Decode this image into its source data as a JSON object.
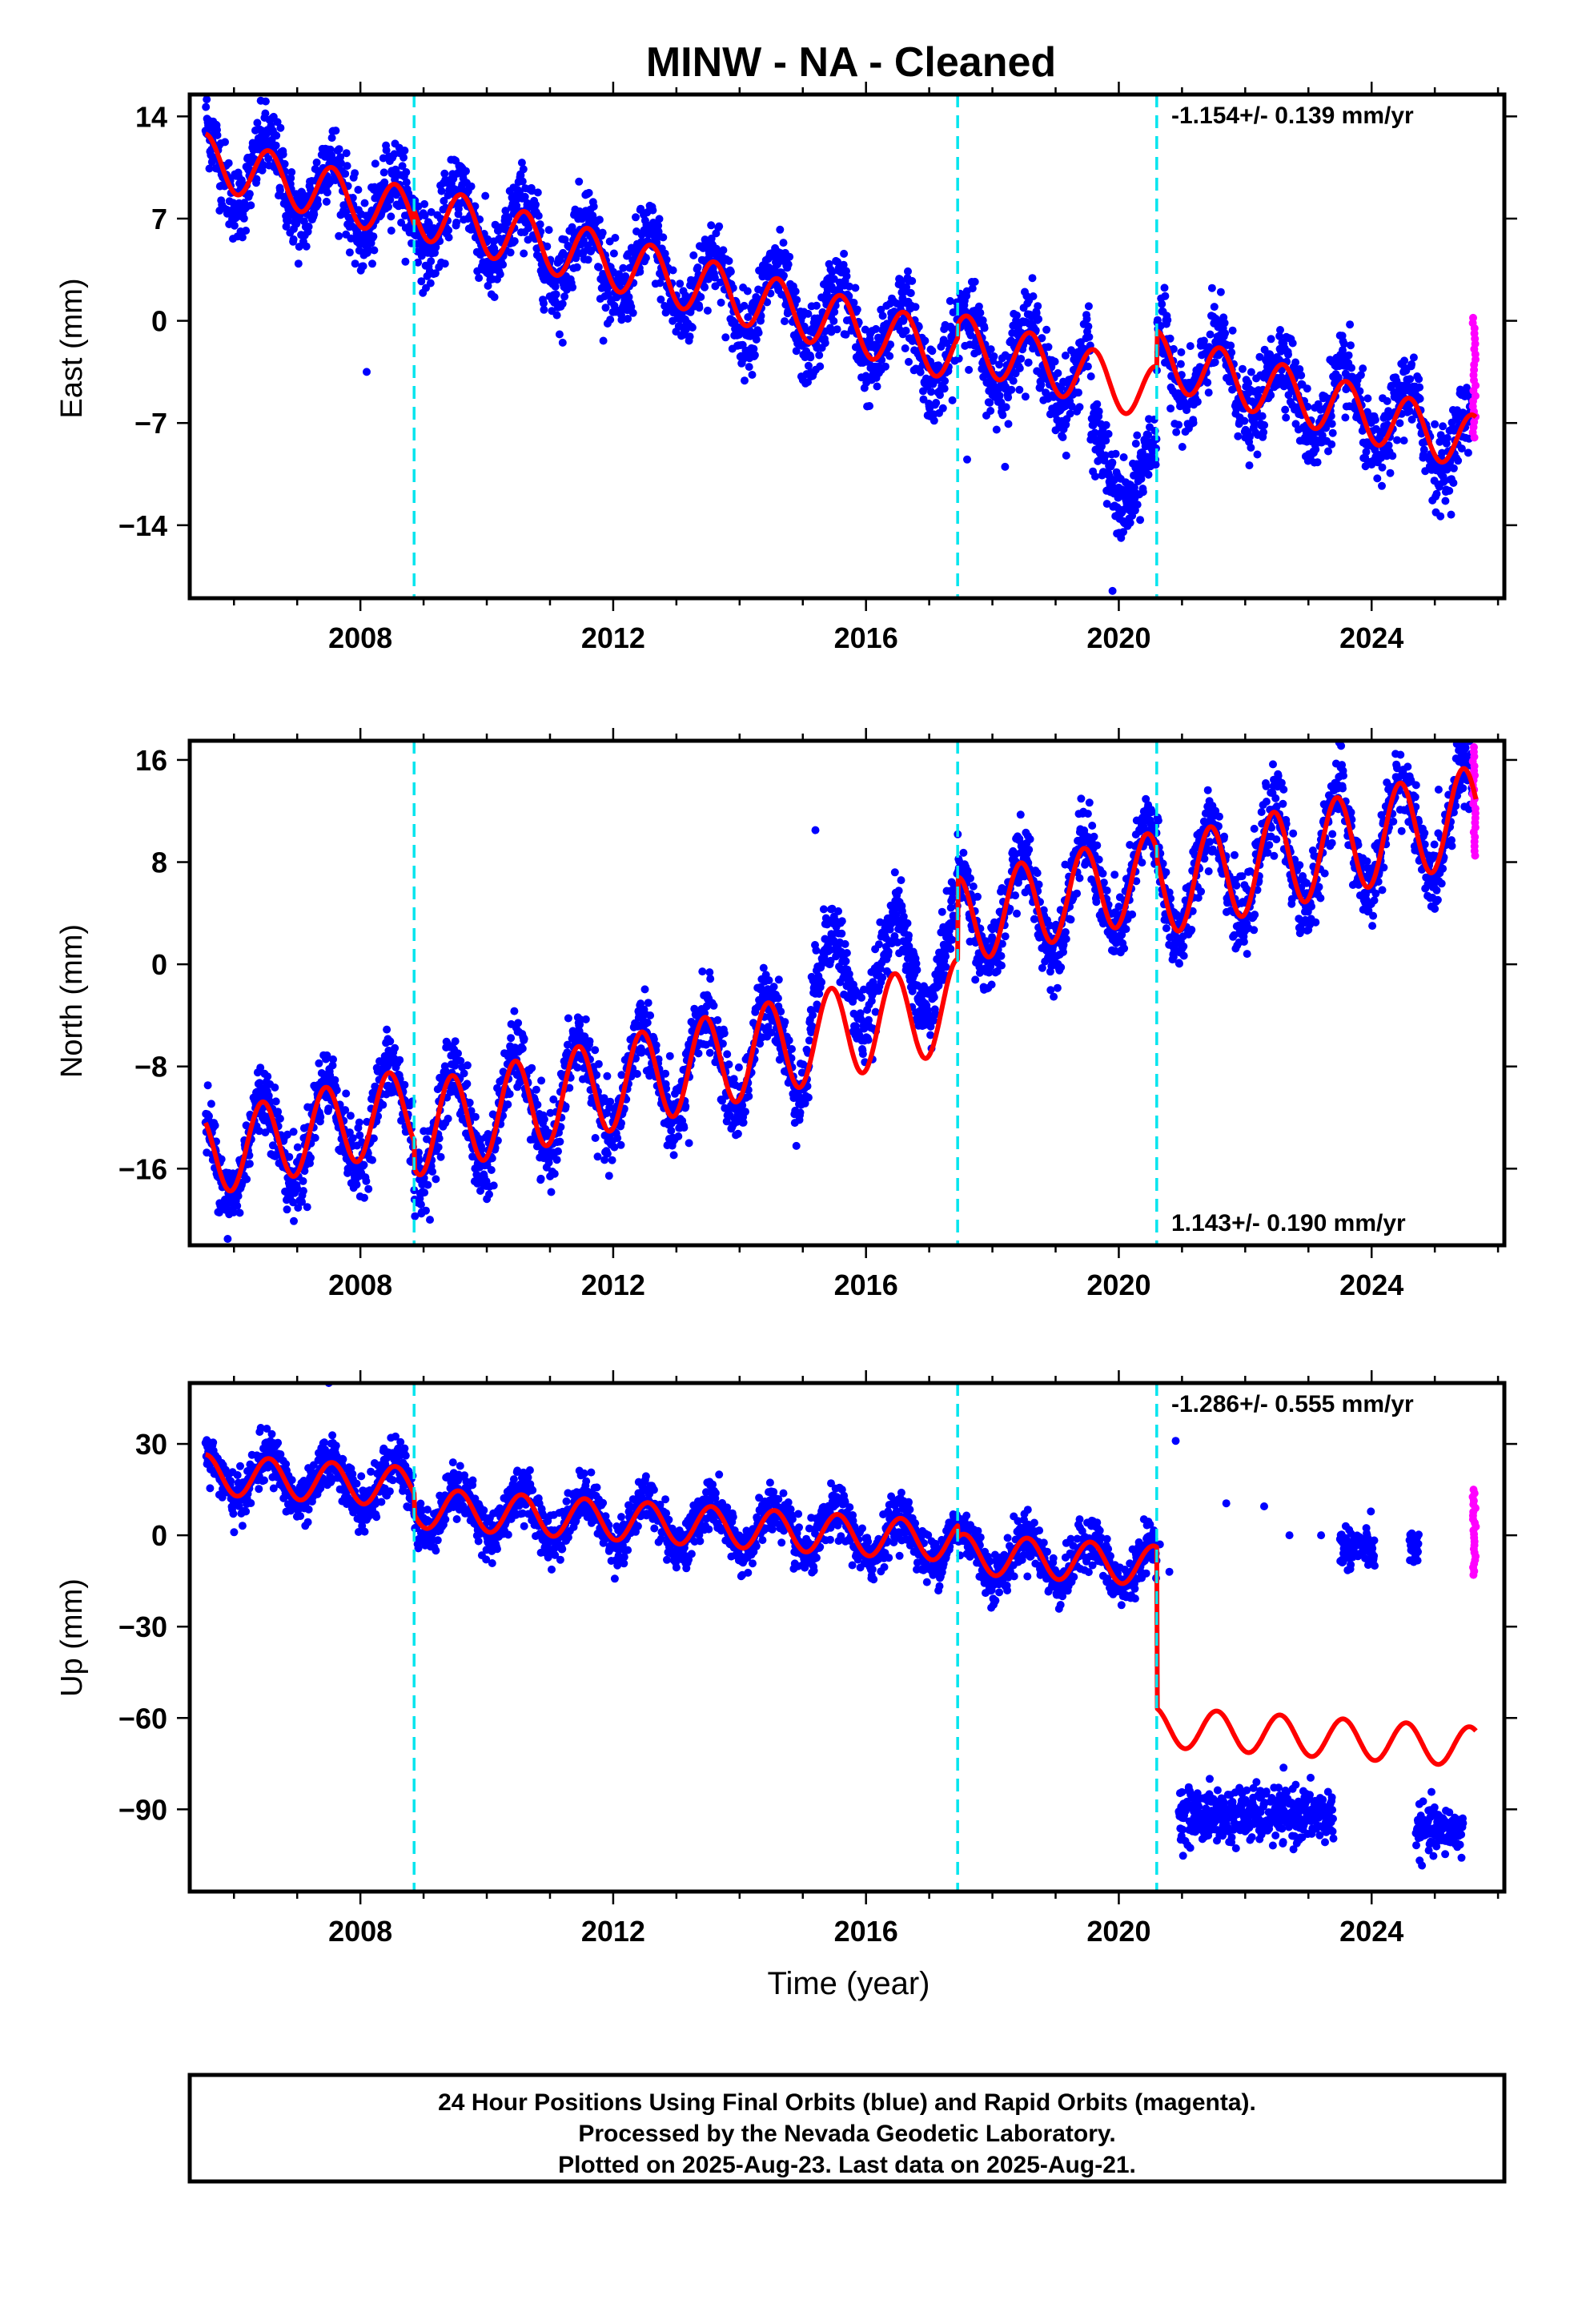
{
  "title": "MINW  - NA - Cleaned",
  "x_axis_label": "Time (year)",
  "footer": {
    "lines": [
      "24 Hour Positions Using Final Orbits (blue) and Rapid Orbits (magenta).",
      "Processed by the Nevada Geodetic Laboratory.",
      "Plotted on 2025-Aug-23. Last data on 2025-Aug-21."
    ]
  },
  "colors": {
    "final_orbits": "#0000ff",
    "rapid_orbits": "#ff00ff",
    "model_fit": "#ff0000",
    "event_lines": "#00e5ee",
    "frame": "#000000"
  },
  "chart_data": [
    {
      "type": "scatter",
      "panel": "east",
      "ylabel": "East (mm)",
      "rate_label": "-1.154+/- 0.139 mm/yr",
      "rate_label_position": "top-right",
      "xlim": [
        2005.3,
        2026.1
      ],
      "ylim": [
        -19,
        15.5
      ],
      "x_ticks": [
        2008,
        2012,
        2016,
        2020,
        2024
      ],
      "y_ticks": [
        14,
        7,
        0,
        -7,
        -14
      ],
      "y_tick_labels": [
        "14",
        "7",
        "0",
        "−7",
        "−14"
      ],
      "event_lines_x": [
        2008.85,
        2017.45,
        2020.6
      ],
      "model": {
        "name": "model fit",
        "segments": [
          {
            "t_start": 2005.55,
            "t_end": 2008.85,
            "intercept_t0": 2005.55,
            "intercept": 11.0,
            "slope": -1.15,
            "amp": 1.8,
            "phase_peak": 0.55,
            "phase_amp": 1.0
          },
          {
            "t_start": 2008.85,
            "t_end": 2017.45,
            "intercept_t0": 2008.85,
            "intercept": 7.6,
            "slope": -1.15,
            "amp": 1.9,
            "phase_peak": 0.6,
            "phase_amp": 1.0
          },
          {
            "t_start": 2017.45,
            "t_end": 2020.6,
            "intercept_t0": 2017.45,
            "intercept": -1.4,
            "slope": -1.15,
            "amp": 1.9,
            "phase_peak": 0.6,
            "phase_amp": 1.0
          },
          {
            "t_start": 2020.6,
            "t_end": 2025.65,
            "intercept_t0": 2020.6,
            "intercept": -2.6,
            "slope": -1.15,
            "amp": 1.9,
            "phase_peak": 0.6,
            "phase_amp": 1.0
          }
        ]
      },
      "final_orbits": {
        "t_start": 2005.55,
        "t_end": 2025.6,
        "noise": 1.3,
        "seasonal_extra": 1.3,
        "offset_windows": [
          {
            "t_start": 2019.55,
            "t_end": 2020.6,
            "offset": -6.0
          }
        ],
        "outliers": [
          [
            2008.1,
            -3.5
          ],
          [
            2019.9,
            -18.5
          ],
          [
            2017.6,
            -9.5
          ],
          [
            2018.2,
            -10.0
          ],
          [
            2011.2,
            -1.5
          ]
        ]
      },
      "rapid_orbits": {
        "t_start": 2025.6,
        "t_end": 2025.65,
        "y_min": -8.0,
        "y_max": 0.2
      }
    },
    {
      "type": "scatter",
      "panel": "north",
      "ylabel": "North (mm)",
      "rate_label": "1.143+/- 0.190 mm/yr",
      "rate_label_position": "bottom-right",
      "xlim": [
        2005.3,
        2026.1
      ],
      "ylim": [
        -22,
        17.5
      ],
      "x_ticks": [
        2008,
        2012,
        2016,
        2020,
        2024
      ],
      "y_ticks": [
        16,
        8,
        0,
        -8,
        -16
      ],
      "y_tick_labels": [
        "16",
        "8",
        "0",
        "−8",
        "−16"
      ],
      "event_lines_x": [
        2008.85,
        2017.45,
        2020.6
      ],
      "model": {
        "name": "model fit",
        "segments": [
          {
            "t_start": 2005.55,
            "t_end": 2008.85,
            "intercept_t0": 2005.55,
            "intercept": -15.0,
            "slope": 1.14,
            "amp": 3.2,
            "phase_peak": 0.45,
            "phase_amp": 1.0
          },
          {
            "t_start": 2008.85,
            "t_end": 2017.45,
            "intercept_t0": 2008.85,
            "intercept": -13.0,
            "slope": 1.14,
            "amp": 3.6,
            "phase_peak": 0.45,
            "phase_amp": 1.0
          },
          {
            "t_start": 2017.45,
            "t_end": 2020.6,
            "intercept_t0": 2017.45,
            "intercept": 3.4,
            "slope": 1.14,
            "amp": 3.4,
            "phase_peak": 0.45,
            "phase_amp": 1.0
          },
          {
            "t_start": 2020.6,
            "t_end": 2025.65,
            "intercept_t0": 2020.6,
            "intercept": 6.0,
            "slope": 1.14,
            "amp": 3.8,
            "phase_peak": 0.45,
            "phase_amp": 1.0
          }
        ]
      },
      "final_orbits": {
        "t_start": 2005.55,
        "t_end": 2025.6,
        "noise": 1.4,
        "seasonal_extra": 1.0,
        "offset_windows": [
          {
            "t_start": 2015.1,
            "t_end": 2017.45,
            "offset": 4.0
          }
        ],
        "outliers": [
          [
            2005.9,
            -21.5
          ],
          [
            2009.1,
            -20.0
          ],
          [
            2013.2,
            -14.0
          ],
          [
            2015.2,
            10.5
          ]
        ]
      },
      "rapid_orbits": {
        "t_start": 2025.6,
        "t_end": 2025.65,
        "y_min": 8.5,
        "y_max": 17.0
      }
    },
    {
      "type": "scatter",
      "panel": "up",
      "ylabel": "Up (mm)",
      "rate_label": "-1.286+/- 0.555 mm/yr",
      "rate_label_position": "top-right",
      "xlim": [
        2005.3,
        2026.1
      ],
      "ylim": [
        -117,
        50
      ],
      "x_ticks": [
        2008,
        2012,
        2016,
        2020,
        2024
      ],
      "y_ticks": [
        30,
        0,
        -30,
        -60,
        -90
      ],
      "y_tick_labels": [
        "30",
        "0",
        "−30",
        "−60",
        "−90"
      ],
      "event_lines_x": [
        2008.85,
        2017.45,
        2020.6
      ],
      "model": {
        "name": "model fit",
        "segments": [
          {
            "t_start": 2005.55,
            "t_end": 2008.85,
            "intercept_t0": 2005.55,
            "intercept": 20.0,
            "slope": -1.29,
            "amp": 6.5,
            "phase_peak": 0.55,
            "phase_amp": 1.0
          },
          {
            "t_start": 2008.85,
            "t_end": 2017.45,
            "intercept_t0": 2008.85,
            "intercept": 9.0,
            "slope": -1.29,
            "amp": 6.5,
            "phase_peak": 0.55,
            "phase_amp": 1.0
          },
          {
            "t_start": 2017.45,
            "t_end": 2020.6,
            "intercept_t0": 2017.45,
            "intercept": -6.0,
            "slope": -1.29,
            "amp": 6.5,
            "phase_peak": 0.55,
            "phase_amp": 1.0
          },
          {
            "t_start": 2020.6,
            "t_end": 2025.65,
            "intercept_t0": 2020.6,
            "intercept": -63.0,
            "slope": -1.29,
            "amp": 6.5,
            "phase_peak": 0.55,
            "phase_amp": 1.0
          }
        ]
      },
      "final_orbits": {
        "t_start": 2005.55,
        "t_end": 2020.6,
        "noise": 4.0,
        "seasonal_extra": 2.0,
        "offset_windows": [],
        "outliers": [
          [
            2007.5,
            50.0
          ],
          [
            2020.9,
            31.0
          ]
        ],
        "clusters": [
          {
            "t_start": 2020.95,
            "t_end": 2023.4,
            "y_center": -92.0,
            "spread": 8.0
          },
          {
            "t_start": 2024.7,
            "t_end": 2025.45,
            "y_center": -97.0,
            "spread": 7.0
          },
          {
            "t_start": 2023.5,
            "t_end": 2024.05,
            "y_center": -4.0,
            "spread": 6.0
          },
          {
            "t_start": 2024.6,
            "t_end": 2024.75,
            "y_center": -5.0,
            "spread": 6.0
          }
        ],
        "sparse_points": [
          [
            2020.65,
            -3.0
          ],
          [
            2020.8,
            -12.0
          ],
          [
            2021.7,
            10.5
          ],
          [
            2022.3,
            9.5
          ],
          [
            2022.7,
            0.0
          ],
          [
            2023.2,
            0.0
          ]
        ]
      },
      "rapid_orbits": {
        "t_start": 2025.6,
        "t_end": 2025.65,
        "y_min": -13.0,
        "y_max": 15.0
      }
    }
  ]
}
